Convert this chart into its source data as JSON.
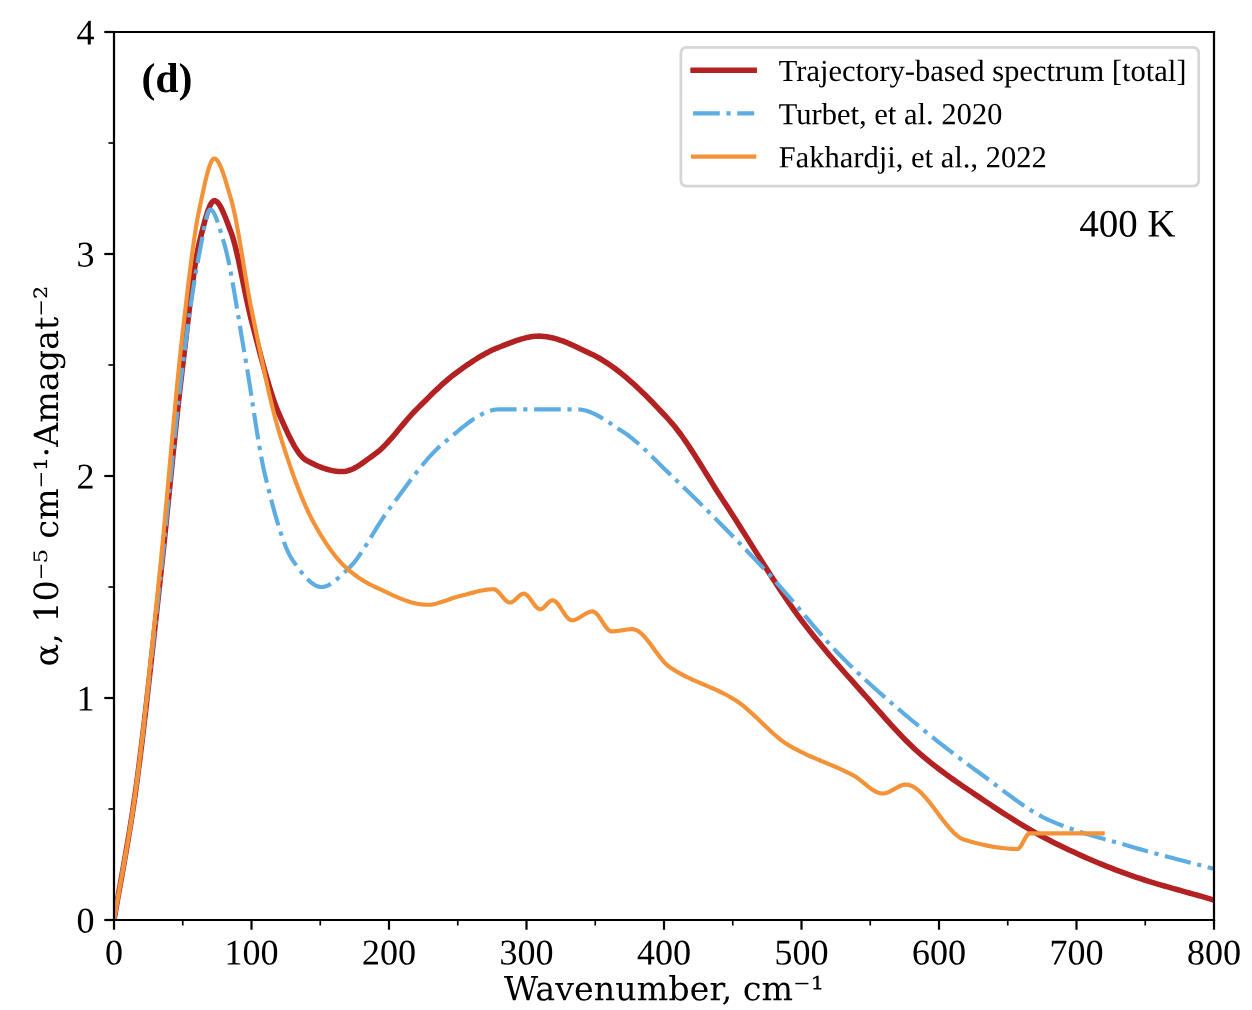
{
  "chart_data": {
    "type": "line",
    "xlabel": "Wavenumber, cm⁻¹",
    "ylabel": "α, 10⁻⁵ cm⁻¹·Amagat⁻²",
    "annotations": [
      "(d)",
      "400 K"
    ],
    "xlim": [
      0,
      800
    ],
    "ylim": [
      0,
      4
    ],
    "xticks": [
      0,
      100,
      200,
      300,
      400,
      500,
      600,
      700,
      800
    ],
    "yticks": [
      0,
      1,
      2,
      3,
      4
    ],
    "grid": false,
    "legend": "top right",
    "series": [
      {
        "name": "Trajectory-based spectrum [total]",
        "color": "#b22222",
        "line_style": "solid",
        "x": [
          0,
          15,
          33,
          50,
          62,
          73,
          85,
          100,
          120,
          140,
          166,
          190,
          220,
          250,
          280,
          309,
          347,
          404,
          443,
          500,
          545,
          586,
          630,
          680,
          740,
          800
        ],
        "values": [
          0,
          0.55,
          1.5,
          2.5,
          3.05,
          3.24,
          3.1,
          2.7,
          2.28,
          2.07,
          2.02,
          2.1,
          2.3,
          2.47,
          2.58,
          2.63,
          2.55,
          2.25,
          1.89,
          1.35,
          1.02,
          0.75,
          0.55,
          0.36,
          0.2,
          0.09
        ]
      },
      {
        "name": "Turbet, et al. 2020",
        "color": "#5dade2",
        "line_style": "dashdot",
        "x": [
          0,
          15,
          33,
          50,
          62,
          70,
          80,
          95,
          110,
          130,
          151,
          170,
          200,
          240,
          280,
          337,
          370,
          404,
          476,
          530,
          586,
          630,
          680,
          740,
          800
        ],
        "values": [
          0,
          0.55,
          1.5,
          2.5,
          3.0,
          3.2,
          3.05,
          2.55,
          2.0,
          1.62,
          1.5,
          1.58,
          1.85,
          2.15,
          2.3,
          2.3,
          2.2,
          2.01,
          1.56,
          1.18,
          0.87,
          0.66,
          0.45,
          0.33,
          0.23
        ]
      },
      {
        "name": "Fakhardji, et al., 2022",
        "color": "#f39237",
        "line_style": "solid",
        "x": [
          0,
          15,
          33,
          50,
          62,
          73,
          85,
          100,
          120,
          147,
          170,
          190,
          228,
          252,
          276,
          288,
          298,
          310,
          319,
          333,
          348,
          362,
          377,
          404,
          452,
          490,
          538,
          559,
          576,
          619,
          657,
          666,
          719
        ],
        "values": [
          0,
          0.55,
          1.55,
          2.65,
          3.2,
          3.43,
          3.25,
          2.75,
          2.2,
          1.77,
          1.58,
          1.5,
          1.42,
          1.46,
          1.49,
          1.43,
          1.47,
          1.4,
          1.44,
          1.35,
          1.39,
          1.3,
          1.31,
          1.14,
          0.99,
          0.79,
          0.65,
          0.57,
          0.61,
          0.36,
          0.32,
          0.39,
          0.39
        ]
      }
    ]
  }
}
